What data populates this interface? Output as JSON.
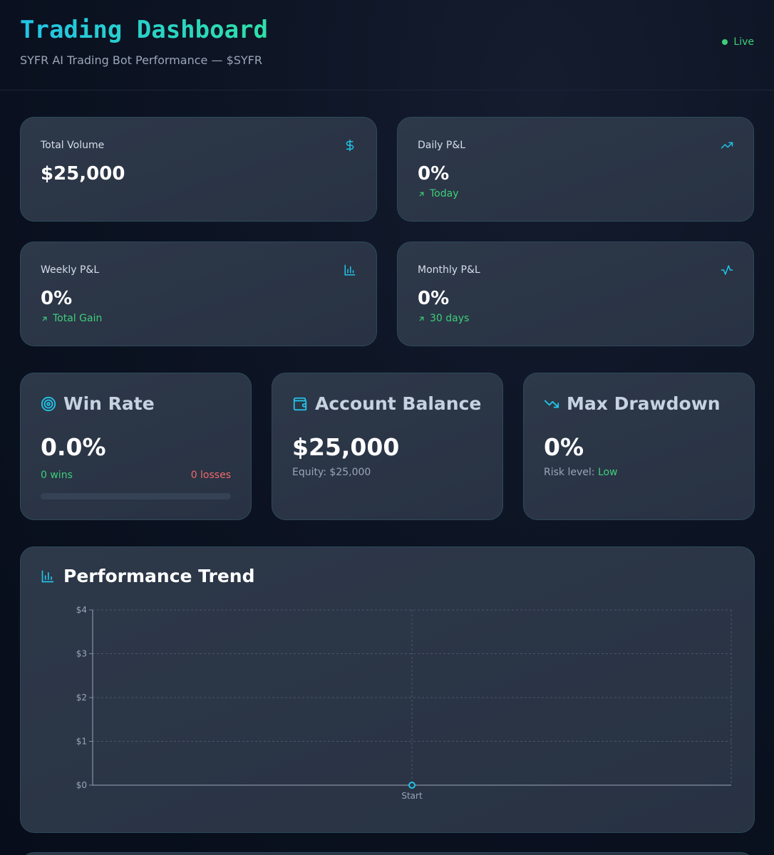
{
  "header": {
    "title": "Trading Dashboard",
    "subtitle": "SYFR AI Trading Bot Performance — $SYFR",
    "status": "Live"
  },
  "stats": {
    "total_volume": {
      "label": "Total Volume",
      "value": "$25,000",
      "icon": "dollar-icon"
    },
    "daily_pnl": {
      "label": "Daily P&L",
      "value": "0%",
      "sub": "Today",
      "icon": "trending-up-icon"
    },
    "weekly_pnl": {
      "label": "Weekly P&L",
      "value": "0%",
      "sub": "Total Gain",
      "icon": "bar-chart-icon"
    },
    "monthly_pnl": {
      "label": "Monthly P&L",
      "value": "0%",
      "sub": "30 days",
      "icon": "activity-icon"
    }
  },
  "win_rate": {
    "label": "Win Rate",
    "value": "0.0%",
    "wins": "0 wins",
    "losses": "0 losses",
    "progress": 0,
    "icon": "target-icon"
  },
  "account_balance": {
    "label": "Account Balance",
    "value": "$25,000",
    "equity": "Equity: $25,000",
    "icon": "wallet-icon"
  },
  "max_drawdown": {
    "label": "Max Drawdown",
    "value": "0%",
    "risk_prefix": "Risk level:",
    "risk_value": "Low",
    "icon": "trending-down-icon"
  },
  "performance": {
    "title": "Performance Trend",
    "icon": "bar-chart-icon"
  },
  "colors": {
    "accent": "#22c4e8",
    "positive": "#3ecf7a",
    "negative": "#f16a6a"
  },
  "chart_data": {
    "type": "line",
    "title": "Performance Trend",
    "categories": [
      "Start"
    ],
    "values": [
      0
    ],
    "ylim": [
      0,
      4
    ],
    "yticks": [
      "$0",
      "$1",
      "$2",
      "$3",
      "$4"
    ],
    "ytick_values": [
      0,
      1,
      2,
      3,
      4
    ],
    "grid": true,
    "xlabel": "",
    "ylabel": ""
  }
}
